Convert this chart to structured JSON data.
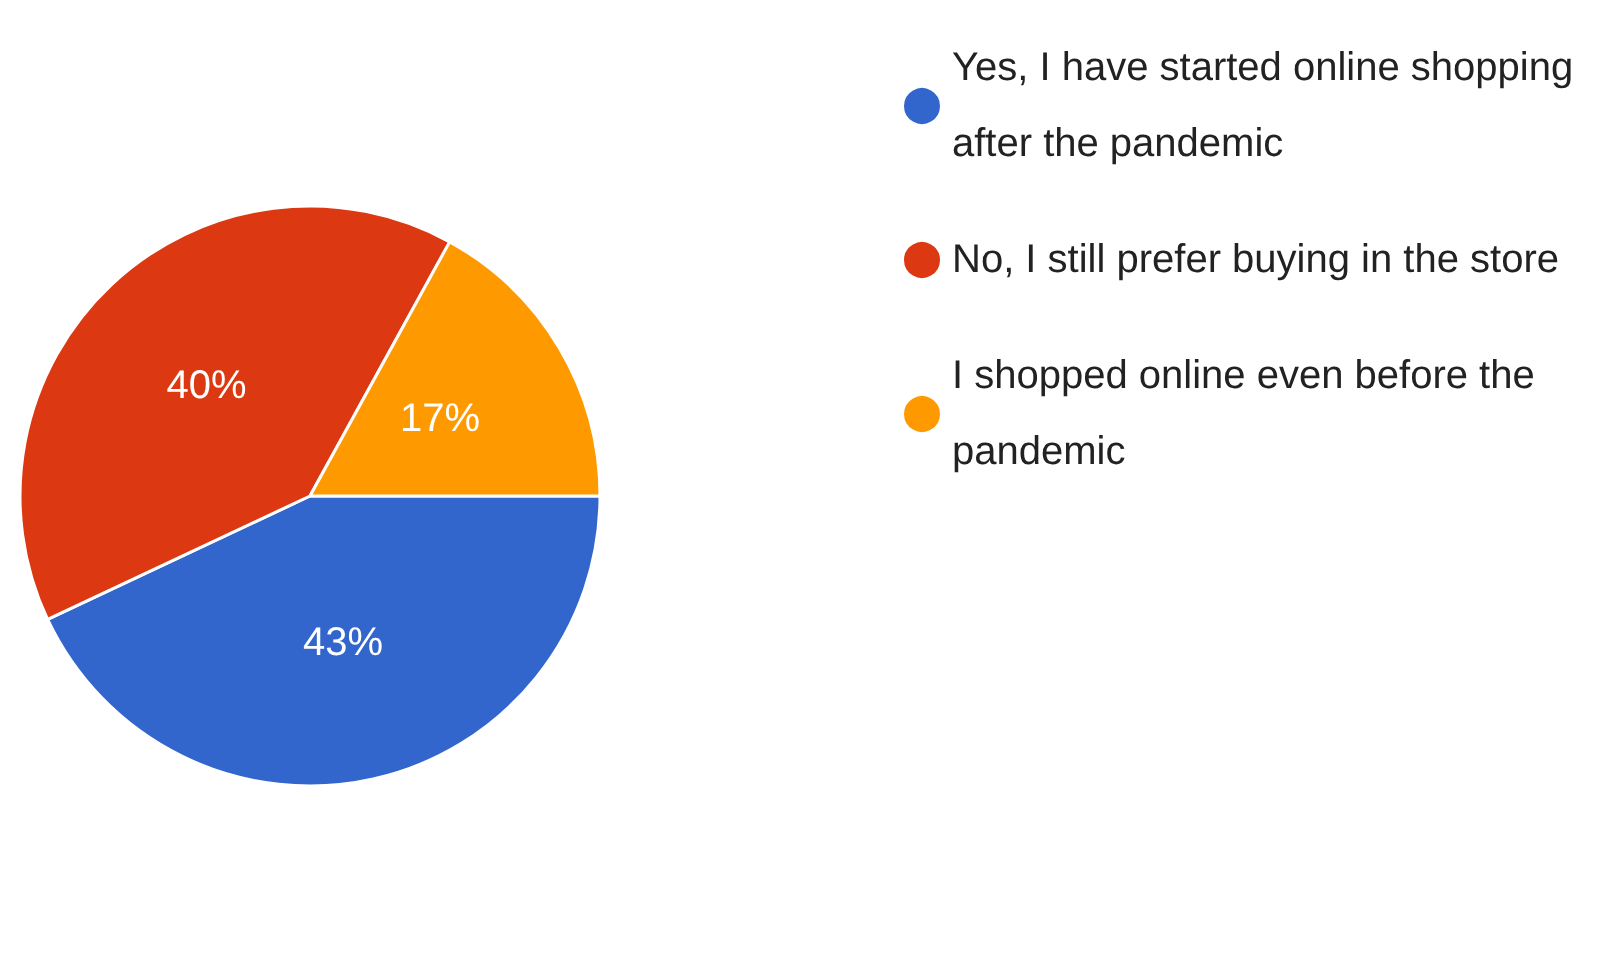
{
  "chart_data": {
    "type": "pie",
    "categories": [
      "Yes, I have started online shopping after the pandemic",
      "No, I still prefer buying in the store",
      "I shopped online even before the pandemic"
    ],
    "values": [
      43,
      40,
      17
    ],
    "colors": [
      "#3366cc",
      "#dc3912",
      "#ff9900"
    ],
    "value_labels": [
      "43%",
      "40%",
      "17%"
    ],
    "legend": "right"
  }
}
